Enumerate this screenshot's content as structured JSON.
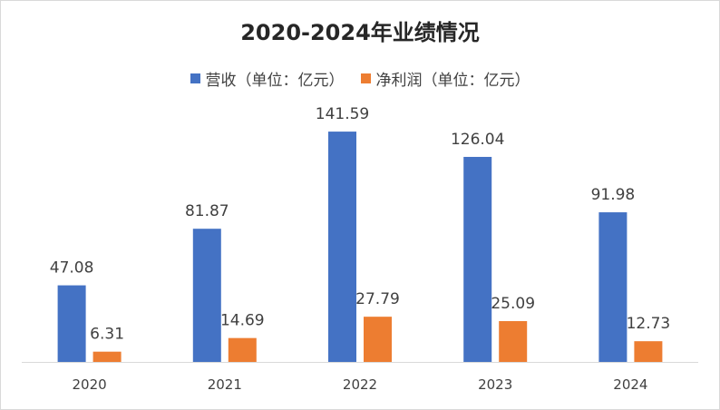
{
  "chart_data": {
    "type": "bar",
    "title": "2020-2024年业绩情况",
    "categories": [
      "2020",
      "2021",
      "2022",
      "2023",
      "2024"
    ],
    "series": [
      {
        "name": "营收（单位：亿元）",
        "color": "#4472C4",
        "values": [
          47.08,
          81.87,
          141.59,
          126.04,
          91.98
        ],
        "labels": [
          "47.08",
          "81.87",
          "141.59",
          "126.04",
          "91.98"
        ]
      },
      {
        "name": "净利润（单位：亿元）",
        "color": "#ED7D31",
        "values": [
          6.31,
          14.69,
          27.79,
          25.09,
          12.73
        ],
        "labels": [
          "6.31",
          "14.69",
          "27.79",
          "25.09",
          "12.73"
        ]
      }
    ],
    "ylim": [
      0,
      150
    ],
    "grid": false,
    "legend_position": "top"
  }
}
